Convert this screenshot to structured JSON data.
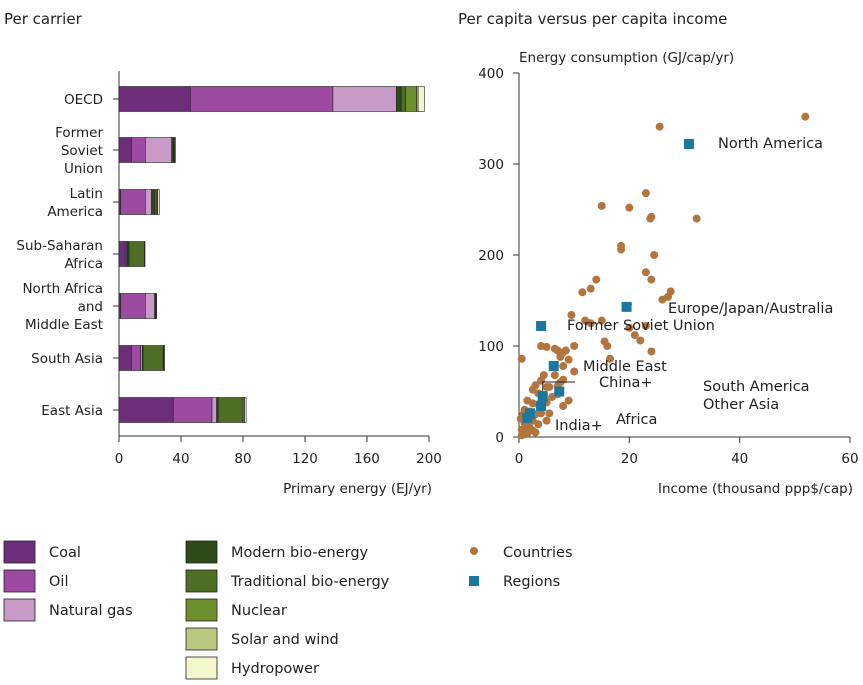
{
  "colors": {
    "coal": "#6d2e7a",
    "oil": "#9c4ba0",
    "natural_gas": "#c79ac8",
    "modern_bio": "#2f4a19",
    "traditional_bio": "#4e6e26",
    "nuclear": "#6e8f2e",
    "solar_wind": "#b8c87e",
    "hydro": "#f4f7cc",
    "countries": "#b37540",
    "regions": "#1a78a0"
  },
  "chart_data": [
    {
      "type": "bar",
      "orientation": "horizontal",
      "stacked": true,
      "title": "Per carrier",
      "xlabel": "Primary energy (EJ/yr)",
      "xlim": [
        0,
        200
      ],
      "xticks": [
        "0",
        "40",
        "80",
        "120",
        "160",
        "200"
      ],
      "categories": [
        [
          "OECD"
        ],
        [
          "Former",
          "Soviet",
          "Union"
        ],
        [
          "Latin",
          "America"
        ],
        [
          "Sub-Saharan",
          "Africa"
        ],
        [
          "North Africa",
          "and",
          "Middle East"
        ],
        [
          "South Asia"
        ],
        [
          "East Asia"
        ]
      ],
      "series": [
        {
          "name": "Coal",
          "key": "coal",
          "values": [
            46,
            8,
            1,
            4,
            1,
            8,
            35
          ]
        },
        {
          "name": "Oil",
          "key": "oil",
          "values": [
            92,
            9,
            16,
            1,
            16,
            6,
            25
          ]
        },
        {
          "name": "Natural gas",
          "key": "natural_gas",
          "values": [
            41,
            17,
            4,
            0.5,
            6,
            1,
            3
          ]
        },
        {
          "name": "Modern bio-energy",
          "key": "modern_bio",
          "values": [
            3,
            1,
            2,
            1,
            0.5,
            0.5,
            1
          ]
        },
        {
          "name": "Traditional bio-energy",
          "key": "traditional_bio",
          "values": [
            3,
            0.5,
            1.5,
            10,
            0.5,
            13,
            16
          ]
        },
        {
          "name": "Nuclear",
          "key": "nuclear",
          "values": [
            7,
            0.5,
            0.5,
            0,
            0,
            0.5,
            1
          ]
        },
        {
          "name": "Solar and wind",
          "key": "solar_wind",
          "values": [
            1,
            0,
            0,
            0,
            0,
            0,
            0
          ]
        },
        {
          "name": "Hydropower",
          "key": "hydro",
          "values": [
            4,
            0.5,
            1,
            0.3,
            0.3,
            0.5,
            1
          ]
        }
      ]
    },
    {
      "type": "scatter",
      "title": "Per capita versus per capita income",
      "ylabel": "Energy consumption (GJ/cap/yr)",
      "xlabel": "Income (thousand ppp$/cap)",
      "xlim": [
        0,
        60
      ],
      "ylim": [
        0,
        400
      ],
      "xticks": [
        "0",
        "20",
        "40",
        "60"
      ],
      "yticks": [
        "0",
        "100",
        "200",
        "300",
        "400"
      ],
      "legend": "bottom",
      "series": [
        {
          "name": "Countries",
          "points": [
            [
              51.9,
              352
            ],
            [
              25.5,
              341
            ],
            [
              32.2,
              240
            ],
            [
              23.0,
              268
            ],
            [
              15.0,
              254
            ],
            [
              20.0,
              252
            ],
            [
              24.0,
              242
            ],
            [
              23.8,
              240
            ],
            [
              18.5,
              210
            ],
            [
              18.5,
              206
            ],
            [
              24.5,
              200
            ],
            [
              23.0,
              181
            ],
            [
              24.0,
              173
            ],
            [
              27.5,
              160
            ],
            [
              14.0,
              173
            ],
            [
              13.0,
              163
            ],
            [
              11.5,
              159
            ],
            [
              27.0,
              154
            ],
            [
              26.0,
              151
            ],
            [
              9.5,
              134
            ],
            [
              13.0,
              125
            ],
            [
              12.0,
              128
            ],
            [
              15.0,
              128
            ],
            [
              15.5,
              105
            ],
            [
              16.0,
              100
            ],
            [
              20.0,
              120
            ],
            [
              21.0,
              112
            ],
            [
              22.0,
              106
            ],
            [
              23.0,
              122
            ],
            [
              24.0,
              94
            ],
            [
              10.0,
              100
            ],
            [
              16.5,
              86
            ],
            [
              4.0,
              100
            ],
            [
              5.0,
              99
            ],
            [
              6.5,
              97
            ],
            [
              7.0,
              95
            ],
            [
              8.5,
              95
            ],
            [
              8.0,
              93
            ],
            [
              7.5,
              88
            ],
            [
              9.0,
              85
            ],
            [
              0.5,
              86
            ],
            [
              8.0,
              78
            ],
            [
              10.0,
              72
            ],
            [
              4.5,
              68
            ],
            [
              4.0,
              62
            ],
            [
              3.0,
              57
            ],
            [
              5.0,
              55
            ],
            [
              5.5,
              55
            ],
            [
              7.0,
              56
            ],
            [
              8.0,
              63
            ],
            [
              2.5,
              52
            ],
            [
              3.5,
              48
            ],
            [
              4.5,
              45
            ],
            [
              6.0,
              44
            ],
            [
              7.0,
              47
            ],
            [
              9.0,
              40
            ],
            [
              1.5,
              40
            ],
            [
              2.5,
              37
            ],
            [
              3.5,
              36
            ],
            [
              5.0,
              38
            ],
            [
              8.0,
              34
            ],
            [
              1.0,
              30
            ],
            [
              2.0,
              28
            ],
            [
              3.0,
              25
            ],
            [
              4.0,
              26
            ],
            [
              5.5,
              26
            ],
            [
              1.5,
              22
            ],
            [
              2.5,
              18
            ],
            [
              3.5,
              14
            ],
            [
              5.0,
              18
            ],
            [
              1.0,
              15
            ],
            [
              1.5,
              12
            ],
            [
              2.0,
              10
            ],
            [
              0.5,
              8
            ],
            [
              1.0,
              6
            ],
            [
              1.5,
              4
            ],
            [
              0.5,
              2
            ],
            [
              2.5,
              7
            ],
            [
              3.0,
              5
            ],
            [
              1.2,
              3
            ],
            [
              0.3,
              20
            ],
            [
              0.8,
              25
            ],
            [
              6.5,
              68
            ],
            [
              7.5,
              60
            ]
          ]
        },
        {
          "name": "Regions",
          "points": [
            {
              "label": "North America",
              "x": 30.8,
              "y": 322
            },
            {
              "label": "Europe/Japan/Australia",
              "x": 19.5,
              "y": 143
            },
            {
              "label": "Former Soviet Union",
              "x": 4.0,
              "y": 122
            },
            {
              "label": "Middle East",
              "x": 6.3,
              "y": 78
            },
            {
              "label": "China+",
              "x": 4.3,
              "y": 45
            },
            {
              "label": "South America",
              "x": 7.3,
              "y": 50
            },
            {
              "label": "Other Asia",
              "x": 4.0,
              "y": 34
            },
            {
              "label": "Africa",
              "x": 2.0,
              "y": 26
            },
            {
              "label": "India+",
              "x": 1.5,
              "y": 21
            }
          ]
        }
      ]
    }
  ]
}
